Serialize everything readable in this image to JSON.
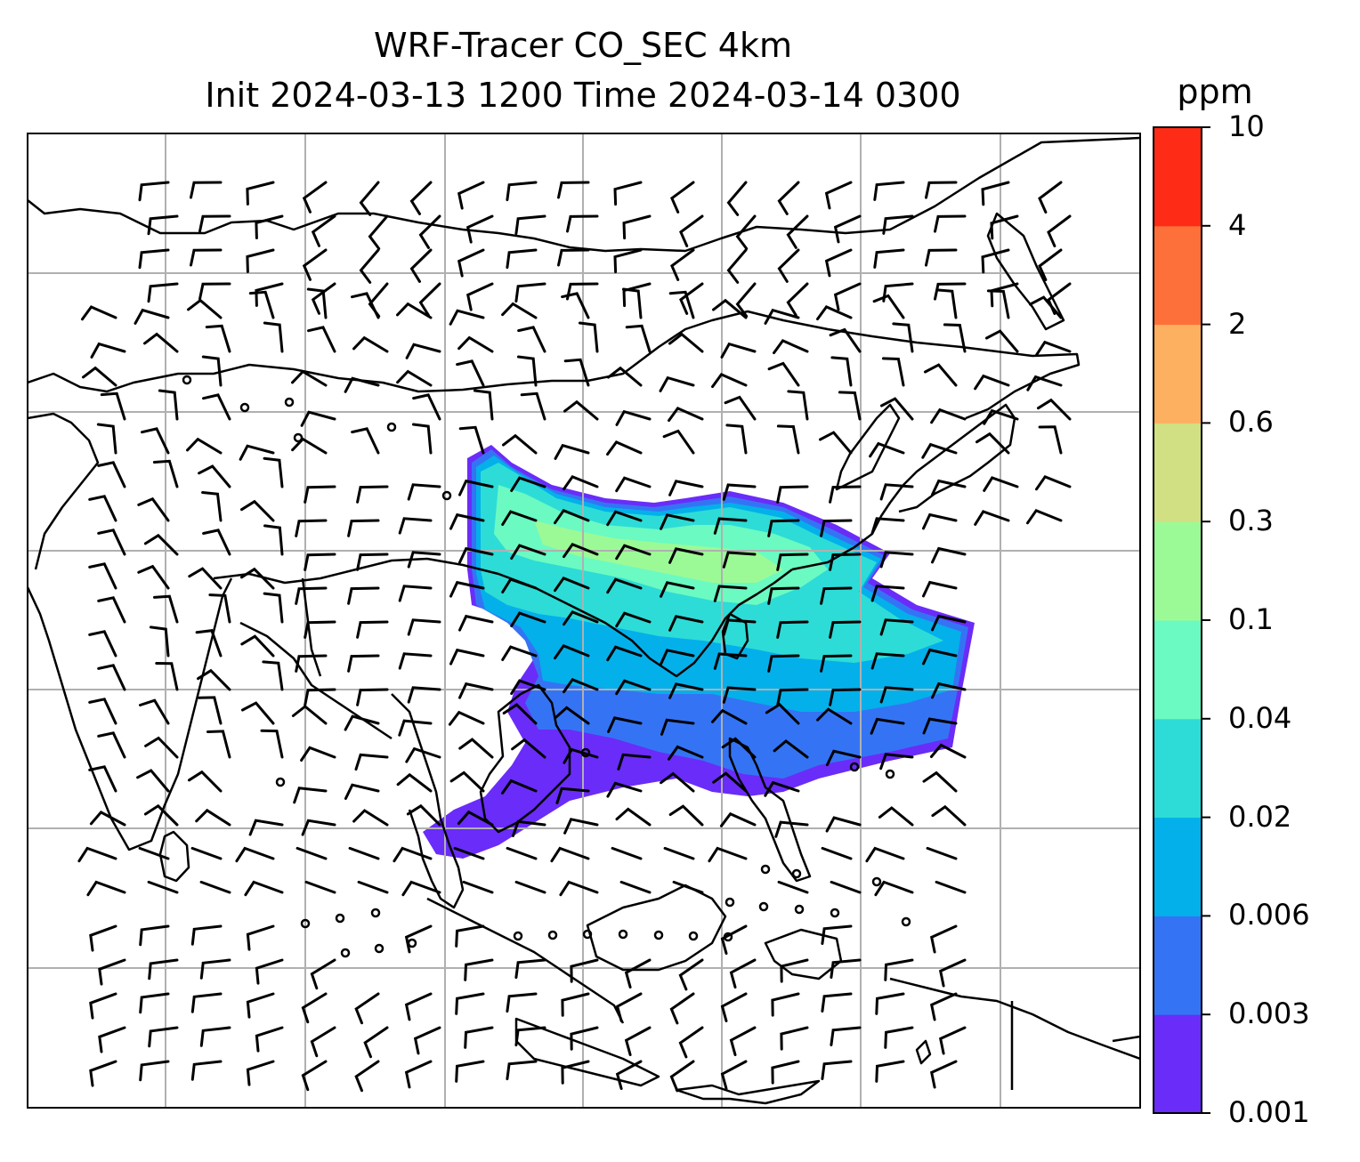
{
  "title": {
    "line1": "WRF-Tracer CO_SEC 4km",
    "line2": "Init 2024-03-13 1200 Time 2024-03-14 0300"
  },
  "colorbar": {
    "unit": "ppm",
    "levels": [
      "0.001",
      "0.003",
      "0.006",
      "0.02",
      "0.04",
      "0.1",
      "0.3",
      "0.6",
      "2",
      "4",
      "10"
    ],
    "colors": [
      "#6a2cf8",
      "#3474f4",
      "#04b0ea",
      "#2ddcd6",
      "#6bfac2",
      "#9cfa96",
      "#d0e082",
      "#fdb060",
      "#fe703a",
      "#fe2c16"
    ]
  },
  "map": {
    "field": "CO_SEC",
    "coastline_color": "#000000",
    "gridline_color": "#b0b0b0",
    "grid": true
  }
}
